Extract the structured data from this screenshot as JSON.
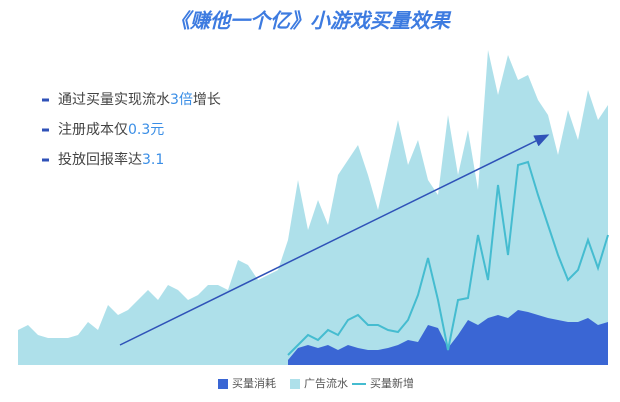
{
  "chart_data": {
    "type": "area",
    "title": "《赚他一个亿》小游戏买量效果",
    "bullets": [
      {
        "text": "通过买量实现流水",
        "highlight": "3倍",
        "after": "增长"
      },
      {
        "text": "注册成本仅",
        "highlight": "0.3元"
      },
      {
        "text": "投放回报率达",
        "highlight": "3.1"
      }
    ],
    "categories": [
      null,
      null,
      null,
      null,
      null,
      null,
      null,
      null,
      null,
      null,
      null,
      null,
      null,
      null,
      null,
      null,
      null,
      null,
      null,
      null,
      null,
      null,
      null,
      null,
      null,
      null,
      null,
      null,
      null,
      null,
      null,
      null,
      null,
      null,
      null,
      null,
      null,
      null,
      null,
      null,
      null,
      null,
      null,
      null,
      null,
      null,
      null,
      null,
      null,
      null,
      null,
      null,
      null,
      null,
      null,
      null,
      null,
      null,
      null,
      null
    ],
    "series": [
      {
        "name": "广告流水",
        "color": "#aee0ea",
        "kind": "area",
        "values": [
          35,
          40,
          30,
          27,
          27,
          27,
          30,
          43,
          35,
          60,
          50,
          55,
          65,
          75,
          65,
          80,
          75,
          65,
          70,
          80,
          80,
          75,
          105,
          100,
          85,
          90,
          95,
          125,
          185,
          135,
          165,
          140,
          190,
          205,
          220,
          190,
          155,
          200,
          245,
          200,
          225,
          185,
          170,
          250,
          190,
          235,
          175,
          315,
          270,
          310,
          285,
          290,
          265,
          250,
          210,
          255,
          225,
          275,
          245,
          260
        ]
      },
      {
        "name": "买量消耗",
        "color": "#3a66d4",
        "kind": "area",
        "values": [
          null,
          null,
          null,
          null,
          null,
          null,
          null,
          null,
          null,
          null,
          null,
          null,
          null,
          null,
          null,
          null,
          null,
          null,
          null,
          null,
          null,
          null,
          null,
          null,
          null,
          null,
          null,
          5,
          17,
          20,
          17,
          20,
          15,
          20,
          17,
          15,
          15,
          17,
          20,
          25,
          23,
          40,
          37,
          17,
          30,
          45,
          40,
          47,
          50,
          47,
          55,
          53,
          50,
          47,
          45,
          43,
          43,
          47,
          40,
          43
        ]
      },
      {
        "name": "买量新增",
        "color": "#45bcd0",
        "kind": "line",
        "values": [
          null,
          null,
          null,
          null,
          null,
          null,
          null,
          null,
          null,
          null,
          null,
          null,
          null,
          null,
          null,
          null,
          null,
          null,
          null,
          null,
          null,
          null,
          null,
          null,
          null,
          null,
          null,
          10,
          20,
          30,
          25,
          35,
          30,
          45,
          50,
          40,
          40,
          35,
          33,
          45,
          70,
          107,
          65,
          15,
          65,
          67,
          130,
          85,
          180,
          110,
          200,
          203,
          170,
          140,
          110,
          85,
          95,
          125,
          97,
          130
        ]
      }
    ]
  }
}
